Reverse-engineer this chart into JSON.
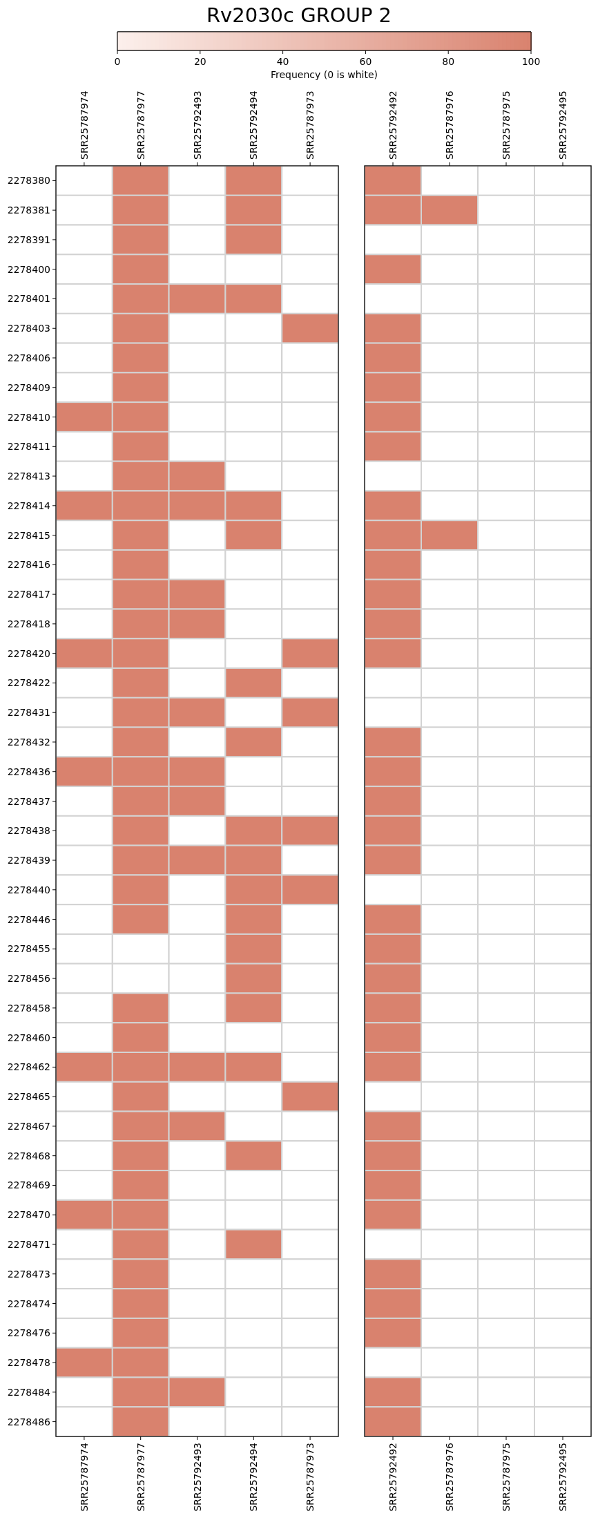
{
  "chart_data": [
    {
      "type": "heatmap",
      "title": "Rv2030c GROUP 2",
      "clabel": "Frequency (0 is white)",
      "clim": [
        0,
        100
      ],
      "cticks": [
        0,
        20,
        40
      ],
      "categories": [
        "SRR25787974",
        "SRR25787977",
        "SRR25792493",
        "SRR25792494",
        "SRR25787973"
      ],
      "y_categories": [
        "2278380",
        "2278381",
        "2278391",
        "2278400",
        "2278401",
        "2278403",
        "2278406",
        "2278409",
        "2278410",
        "2278411",
        "2278413",
        "2278414",
        "2278415",
        "2278416",
        "2278417",
        "2278418",
        "2278420",
        "2278422",
        "2278431",
        "2278432",
        "2278436",
        "2278437",
        "2278438",
        "2278439",
        "2278440",
        "2278446",
        "2278455",
        "2278456",
        "2278458",
        "2278460",
        "2278462",
        "2278465",
        "2278467",
        "2278468",
        "2278469",
        "2278470",
        "2278471",
        "2278473",
        "2278474",
        "2278476",
        "2278478",
        "2278484",
        "2278486"
      ],
      "cells": [
        [
          0,
          100,
          0,
          100,
          0
        ],
        [
          0,
          100,
          0,
          100,
          0
        ],
        [
          0,
          100,
          0,
          100,
          0
        ],
        [
          0,
          100,
          0,
          0,
          0
        ],
        [
          0,
          100,
          100,
          100,
          0
        ],
        [
          0,
          100,
          0,
          0,
          100
        ],
        [
          0,
          100,
          0,
          0,
          0
        ],
        [
          0,
          100,
          0,
          0,
          0
        ],
        [
          100,
          100,
          0,
          0,
          0
        ],
        [
          0,
          100,
          0,
          0,
          0
        ],
        [
          0,
          100,
          100,
          0,
          0
        ],
        [
          100,
          100,
          100,
          100,
          0
        ],
        [
          0,
          100,
          0,
          100,
          0
        ],
        [
          0,
          100,
          0,
          0,
          0
        ],
        [
          0,
          100,
          100,
          0,
          0
        ],
        [
          0,
          100,
          100,
          0,
          0
        ],
        [
          100,
          100,
          0,
          0,
          100
        ],
        [
          0,
          100,
          0,
          100,
          0
        ],
        [
          0,
          100,
          100,
          0,
          100
        ],
        [
          0,
          100,
          0,
          100,
          0
        ],
        [
          100,
          100,
          100,
          0,
          0
        ],
        [
          0,
          100,
          100,
          0,
          0
        ],
        [
          0,
          100,
          0,
          100,
          100
        ],
        [
          0,
          100,
          100,
          100,
          0
        ],
        [
          0,
          100,
          0,
          100,
          100
        ],
        [
          0,
          100,
          0,
          100,
          0
        ],
        [
          0,
          0,
          0,
          100,
          0
        ],
        [
          0,
          0,
          0,
          100,
          0
        ],
        [
          0,
          100,
          0,
          100,
          0
        ],
        [
          0,
          100,
          0,
          0,
          0
        ],
        [
          100,
          100,
          100,
          100,
          0
        ],
        [
          0,
          100,
          0,
          0,
          100
        ],
        [
          0,
          100,
          100,
          0,
          0
        ],
        [
          0,
          100,
          0,
          100,
          0
        ],
        [
          0,
          100,
          0,
          0,
          0
        ],
        [
          100,
          100,
          0,
          0,
          0
        ],
        [
          0,
          100,
          0,
          100,
          0
        ],
        [
          0,
          100,
          0,
          0,
          0
        ],
        [
          0,
          100,
          0,
          0,
          0
        ],
        [
          0,
          100,
          0,
          0,
          0
        ],
        [
          100,
          100,
          0,
          0,
          0
        ],
        [
          0,
          100,
          100,
          0,
          0
        ],
        [
          0,
          100,
          0,
          0,
          0
        ]
      ]
    },
    {
      "type": "heatmap",
      "clim": [
        0,
        100
      ],
      "cticks": [
        60,
        80,
        100
      ],
      "tick_labels": "x",
      "categories": [
        "SRR25792492",
        "SRR25787976",
        "SRR25787975",
        "SRR25792495"
      ],
      "y_categories": [
        "2278380",
        "2278381",
        "2278391",
        "2278400",
        "2278401",
        "2278403",
        "2278406",
        "2278409",
        "2278410",
        "2278411",
        "2278413",
        "2278414",
        "2278415",
        "2278416",
        "2278417",
        "2278418",
        "2278420",
        "2278422",
        "2278431",
        "2278432",
        "2278436",
        "2278437",
        "2278438",
        "2278439",
        "2278440",
        "2278446",
        "2278455",
        "2278456",
        "2278458",
        "2278460",
        "2278462",
        "2278465",
        "2278467",
        "2278468",
        "2278469",
        "2278470",
        "2278471",
        "2278473",
        "2278474",
        "2278476",
        "2278478",
        "2278484",
        "2278486"
      ],
      "cells": [
        [
          100,
          0,
          0,
          0
        ],
        [
          100,
          100,
          0,
          0
        ],
        [
          0,
          0,
          0,
          0
        ],
        [
          100,
          0,
          0,
          0
        ],
        [
          0,
          0,
          0,
          0
        ],
        [
          100,
          0,
          0,
          0
        ],
        [
          100,
          0,
          0,
          0
        ],
        [
          100,
          0,
          0,
          0
        ],
        [
          100,
          0,
          0,
          0
        ],
        [
          100,
          0,
          0,
          0
        ],
        [
          0,
          0,
          0,
          0
        ],
        [
          100,
          0,
          0,
          0
        ],
        [
          100,
          100,
          0,
          0
        ],
        [
          100,
          0,
          0,
          0
        ],
        [
          100,
          0,
          0,
          0
        ],
        [
          100,
          0,
          0,
          0
        ],
        [
          100,
          0,
          0,
          0
        ],
        [
          0,
          0,
          0,
          0
        ],
        [
          0,
          0,
          0,
          0
        ],
        [
          100,
          0,
          0,
          0
        ],
        [
          100,
          0,
          0,
          0
        ],
        [
          100,
          0,
          0,
          0
        ],
        [
          100,
          0,
          0,
          0
        ],
        [
          100,
          0,
          0,
          0
        ],
        [
          0,
          0,
          0,
          0
        ],
        [
          100,
          0,
          0,
          0
        ],
        [
          100,
          0,
          0,
          0
        ],
        [
          100,
          0,
          0,
          0
        ],
        [
          100,
          0,
          0,
          0
        ],
        [
          100,
          0,
          0,
          0
        ],
        [
          100,
          0,
          0,
          0
        ],
        [
          0,
          0,
          0,
          0
        ],
        [
          100,
          0,
          0,
          0
        ],
        [
          100,
          0,
          0,
          0
        ],
        [
          100,
          0,
          0,
          0
        ],
        [
          100,
          0,
          0,
          0
        ],
        [
          0,
          0,
          0,
          0
        ],
        [
          100,
          0,
          0,
          0
        ],
        [
          100,
          0,
          0,
          0
        ],
        [
          100,
          0,
          0,
          0
        ],
        [
          0,
          0,
          0,
          0
        ],
        [
          100,
          0,
          0,
          0
        ],
        [
          100,
          0,
          0,
          0
        ]
      ]
    }
  ]
}
